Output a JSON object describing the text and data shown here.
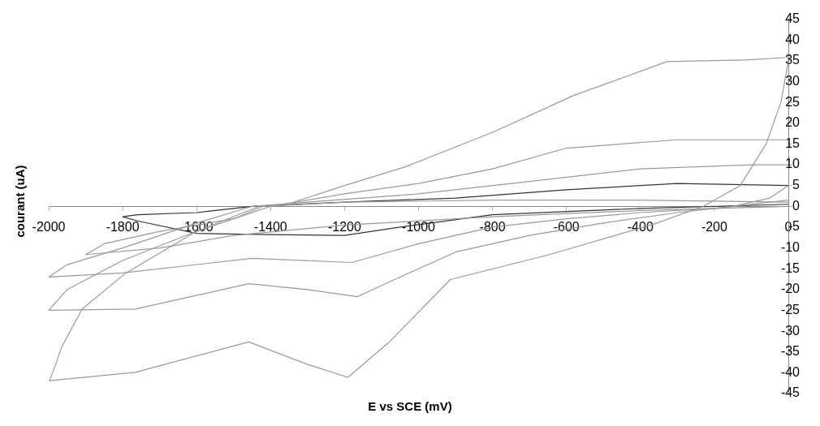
{
  "chart_data": {
    "type": "line",
    "xlabel": "E vs SCE (mV)",
    "ylabel": "courant (uA)",
    "xlim": [
      -2000,
      0
    ],
    "ylim": [
      -45,
      45
    ],
    "xticks": [
      -2000,
      -1800,
      -1600,
      -1400,
      -1200,
      -1000,
      -800,
      -600,
      -400,
      -200,
      0
    ],
    "yticks": [
      -45,
      -40,
      -35,
      -30,
      -25,
      -20,
      -15,
      -10,
      -5,
      0,
      5,
      10,
      15,
      20,
      25,
      30,
      35,
      40,
      45
    ],
    "grid": false,
    "legend": false,
    "marker": "none",
    "line_style": "solid",
    "series": [
      {
        "color": "#999999",
        "x": [
          0,
          -20,
          -60,
          -130,
          -230,
          -365,
          -650,
          -914,
          -1079,
          -1191,
          -1300,
          -1459,
          -1766,
          -1998,
          -1981,
          -1966,
          -1910,
          -1794,
          -1600,
          -1430,
          -1365,
          -1200,
          -1036,
          -794,
          -579,
          -328,
          -114,
          0
        ],
        "values": [
          35,
          25,
          15,
          5,
          0,
          -4.3,
          -11.7,
          -17.6,
          -32.6,
          -41.1,
          -38,
          -32.6,
          -39.9,
          -41.9,
          -38,
          -34,
          -24.7,
          -16.2,
          -6,
          0,
          0.2,
          5,
          9.5,
          18,
          26.7,
          34.8,
          35.2,
          35.8
        ]
      },
      {
        "color": "#999999",
        "x": [
          0,
          -50,
          -150,
          -300,
          -500,
          -700,
          -900,
          -1050,
          -1165,
          -1300,
          -1459,
          -1766,
          -2000,
          -1950,
          -1800,
          -1600,
          -1400,
          -1200,
          -1000,
          -800,
          -600,
          -300,
          0
        ],
        "values": [
          5,
          2,
          0,
          -1.5,
          -4,
          -7,
          -11,
          -17,
          -21.7,
          -20,
          -18.6,
          -24.7,
          -25,
          -20,
          -13,
          -6,
          0,
          3,
          5.5,
          9,
          14,
          16,
          16
        ]
      },
      {
        "color": "#999999",
        "x": [
          0,
          -200,
          -400,
          -600,
          -800,
          -1000,
          -1180,
          -1450,
          -1800,
          -2000,
          -1950,
          -1800,
          -1600,
          -1450,
          -1300,
          -1000,
          -700,
          -400,
          -100,
          0
        ],
        "values": [
          1.5,
          -0.5,
          -1.5,
          -3,
          -5,
          -9,
          -13.5,
          -12.5,
          -16,
          -17,
          -14,
          -10,
          -4,
          0,
          1,
          3,
          6,
          9,
          10,
          10
        ]
      },
      {
        "color": "#999999",
        "x": [
          0,
          -400,
          -800,
          -1200,
          -1500,
          -1700,
          -1900,
          -1850,
          -1700,
          -1500,
          -1420,
          -1200,
          -800,
          -400,
          0
        ],
        "values": [
          0,
          -1,
          -2.5,
          -4.5,
          -7,
          -10,
          -11.6,
          -9,
          -6,
          -3,
          0,
          1,
          1.5,
          1.5,
          1
        ]
      },
      {
        "color": "#333333",
        "x": [
          0,
          -400,
          -800,
          -1050,
          -1200,
          -1400,
          -1600,
          -1760,
          -1800,
          -1760,
          -1600,
          -1450,
          -1200,
          -900,
          -600,
          -300,
          0
        ],
        "values": [
          0.5,
          -0.5,
          -2,
          -5,
          -7,
          -6.8,
          -6.5,
          -3.5,
          -2.5,
          -2,
          -1.5,
          0,
          1,
          2,
          4,
          5.5,
          5
        ]
      }
    ]
  }
}
